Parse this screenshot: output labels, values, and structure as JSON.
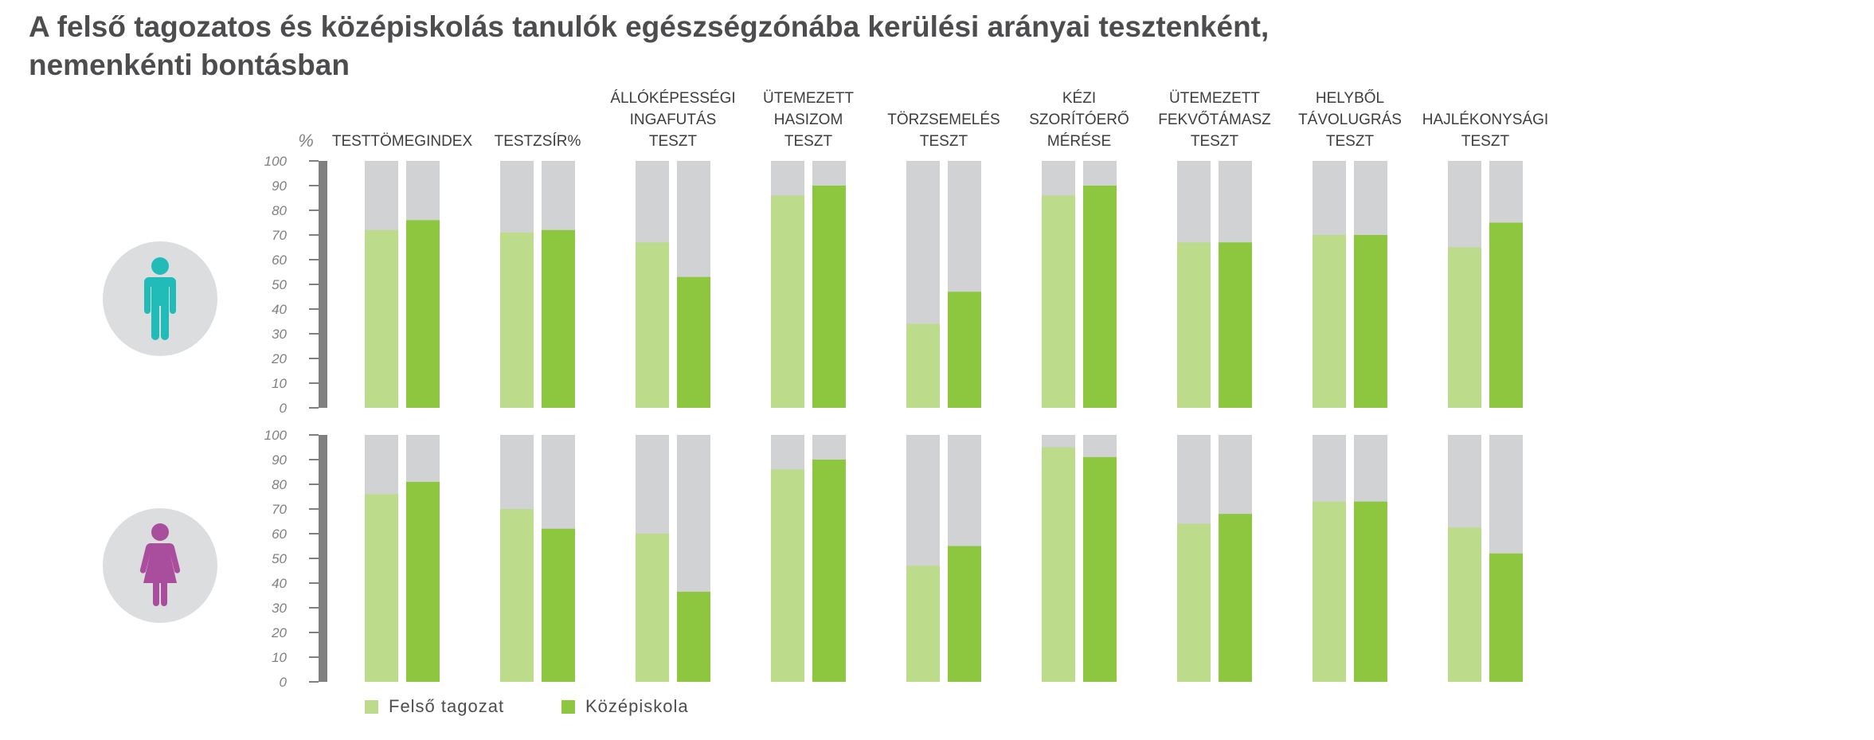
{
  "title": {
    "line1": "A felső tagozatos és középiskolás tanulók egészségzónába kerülési arányai tesztenként,",
    "line2": "nemenkénti bontásban"
  },
  "colors": {
    "felso": "#bcdc8b",
    "kozep": "#8dc63f",
    "remainder": "#d1d2d4",
    "axis": "#808080",
    "male": "#22bcb8",
    "female": "#a94e9c",
    "icon_bg": "#dcdddf"
  },
  "icons": {
    "male": "male-person-icon",
    "female": "female-person-icon"
  },
  "chart_data": {
    "type": "bar",
    "title": "A felső tagozatos és középiskolás tanulók egészségzónába kerülési arányai tesztenként, nemenkénti bontásban",
    "ylabel": "%",
    "ylim": [
      0,
      100
    ],
    "yticks": [
      "100",
      "90",
      "80",
      "70",
      "60",
      "50",
      "40",
      "30",
      "20",
      "10",
      "0"
    ],
    "categories": [
      [
        "TESTTÖMEGINDEX"
      ],
      [
        "TESTZSÍR%"
      ],
      [
        "ÁLLÓKÉPESSÉGI",
        "INGAFUTÁS",
        "TESZT"
      ],
      [
        "ÜTEMEZETT",
        "HASIZOM",
        "TESZT"
      ],
      [
        "TÖRZSEMELÉS",
        "TESZT"
      ],
      [
        "KÉZI",
        "SZORÍTÓERŐ",
        "MÉRÉSE"
      ],
      [
        "ÜTEMEZETT",
        "FEKVŐTÁMASZ",
        "TESZT"
      ],
      [
        "HELYBŐL",
        "TÁVOLUGRÁS",
        "TESZT"
      ],
      [
        "HAJLÉKONYSÁGI",
        "TESZT"
      ]
    ],
    "legend": [
      "Felső tagozat",
      "Középiskola"
    ],
    "legend_position": "bottom-left",
    "panels": [
      {
        "group": "male",
        "series": [
          {
            "name": "Felső tagozat",
            "values": [
              72,
              71,
              67,
              86,
              34,
              86,
              67,
              70,
              65
            ]
          },
          {
            "name": "Középiskola",
            "values": [
              76,
              72,
              53,
              90,
              47,
              90,
              67,
              70,
              75
            ]
          }
        ]
      },
      {
        "group": "female",
        "series": [
          {
            "name": "Felső tagozat",
            "values": [
              76,
              70,
              60,
              86,
              47,
              95,
              64,
              73,
              62.5
            ]
          },
          {
            "name": "Középiskola",
            "values": [
              81,
              62,
              36.5,
              90,
              55,
              91,
              68,
              73,
              52
            ]
          }
        ]
      }
    ]
  }
}
